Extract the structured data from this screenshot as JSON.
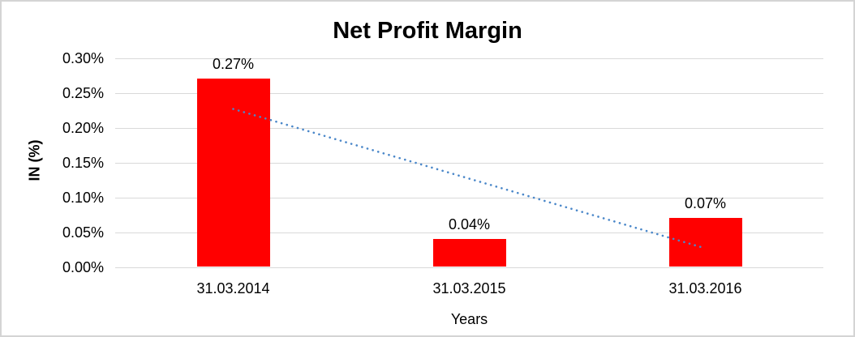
{
  "chart_data": {
    "type": "bar",
    "title": "Net Profit Margin",
    "xlabel": "Years",
    "ylabel": "IN (%)",
    "categories": [
      "31.03.2014",
      "31.03.2015",
      "31.03.2016"
    ],
    "series": [
      {
        "name": "Net Profit Margin",
        "values": [
          0.27,
          0.04,
          0.07
        ]
      }
    ],
    "data_labels": [
      "0.27%",
      "0.04%",
      "0.07%"
    ],
    "y_ticks": [
      {
        "value": 0.3,
        "label": "0.30%"
      },
      {
        "value": 0.25,
        "label": "0.25%"
      },
      {
        "value": 0.2,
        "label": "0.20%"
      },
      {
        "value": 0.15,
        "label": "0.15%"
      },
      {
        "value": 0.1,
        "label": "0.10%"
      },
      {
        "value": 0.05,
        "label": "0.05%"
      },
      {
        "value": 0.0,
        "label": "0.00%"
      }
    ],
    "ylim": [
      0,
      0.3
    ],
    "grid": true,
    "legend": "none",
    "trendline": {
      "type": "linear",
      "style": "dotted",
      "start_value": 0.2267,
      "end_value": 0.0267
    },
    "colors": {
      "bar": "#ff0000",
      "gridline": "#d9d9d9",
      "trendline": "#4a87c9",
      "text": "#000000",
      "frame_border": "#d4d4d4",
      "accent_line": "#000000"
    }
  }
}
